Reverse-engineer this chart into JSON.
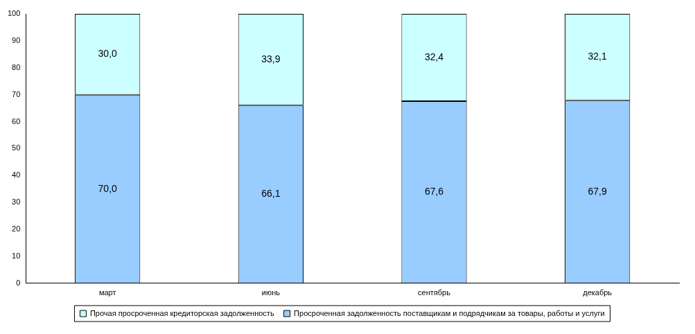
{
  "chart_data": {
    "type": "bar",
    "stacked": true,
    "categories": [
      "март",
      "июнь",
      "сентябрь",
      "декабрь"
    ],
    "series": [
      {
        "name": "Просроченная задолженность поставщикам и подрядчикам за товары, работы и услуги",
        "color": "#99ccff",
        "values": [
          70.0,
          66.1,
          67.6,
          67.9
        ],
        "value_labels": [
          "70,0",
          "66,1",
          "67,6",
          "67,9"
        ]
      },
      {
        "name": "Прочая просроченная кредиторская задолженность",
        "color": "#ccffff",
        "values": [
          30.0,
          33.9,
          32.4,
          32.1
        ],
        "value_labels": [
          "30,0",
          "33,9",
          "32,4",
          "32,1"
        ]
      }
    ],
    "ylim": [
      0,
      100
    ],
    "yticks": [
      0,
      10,
      20,
      30,
      40,
      50,
      60,
      70,
      80,
      90,
      100
    ],
    "grid": false,
    "legend": "bottom"
  }
}
